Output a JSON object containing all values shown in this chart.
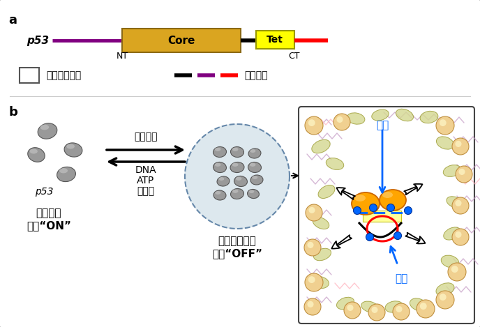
{
  "bg_color": "#ffffff",
  "panel_a_label": "a",
  "panel_b_label": "b",
  "p53_label": "p53",
  "core_label": "Core",
  "tet_label": "Tet",
  "nt_label": "NT",
  "ct_label": "CT",
  "legend_box_label": "特定立体结构",
  "legend_line_label": "天然无序",
  "core_color": "#DAA520",
  "tet_color": "#FFFF00",
  "purple_color": "#800080",
  "red_color": "#FF0000",
  "p53_text_left": "分散状态",
  "p53_text_right": "液滴状缔合物",
  "func_on": "功能“ON”",
  "func_off": "功能“OFF”",
  "arrow_top_label": "分子混杂",
  "arrow_bot1": "DNA",
  "arrow_bot2": "ATP",
  "arrow_bot3": "磷酸化",
  "expand_label": "扩大",
  "shrink_label": "缩小",
  "orange_color": "#FFA500",
  "blue_color": "#0066FF",
  "light_purple": "#C8A0C8",
  "pink_color": "#FFB6C1",
  "yellow_green": "#D4C870"
}
